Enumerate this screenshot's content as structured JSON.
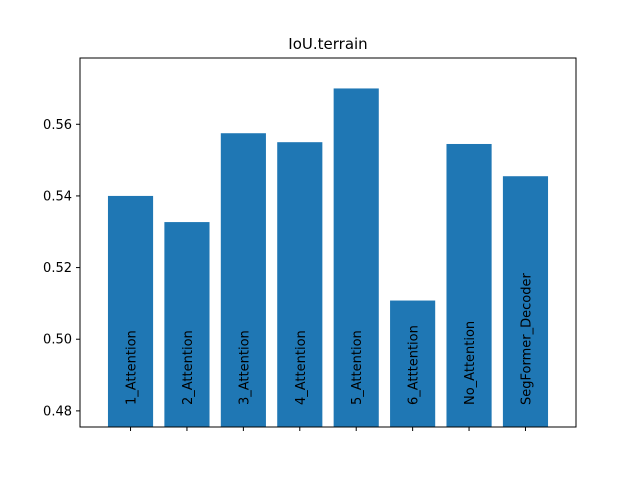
{
  "chart_data": {
    "type": "bar",
    "title": "IoU.terrain",
    "xlabel": "",
    "ylabel": "",
    "categories": [
      "1_Attention",
      "2_Attention",
      "3_Attention",
      "4_Attention",
      "5_Attention",
      "6_Atttention",
      "No_Attention",
      "SegFormer_Decoder"
    ],
    "values": [
      0.54,
      0.5327,
      0.5575,
      0.555,
      0.57,
      0.5108,
      0.5545,
      0.5455
    ],
    "ylim": [
      0.4755,
      0.5785
    ],
    "yticks": [
      0.48,
      0.5,
      0.52,
      0.54,
      0.56
    ],
    "ytick_labels": [
      "0.48",
      "0.50",
      "0.52",
      "0.54",
      "0.56"
    ],
    "bar_color": "#1f77b4",
    "grid": false,
    "category_labels_inside_bars": true
  }
}
